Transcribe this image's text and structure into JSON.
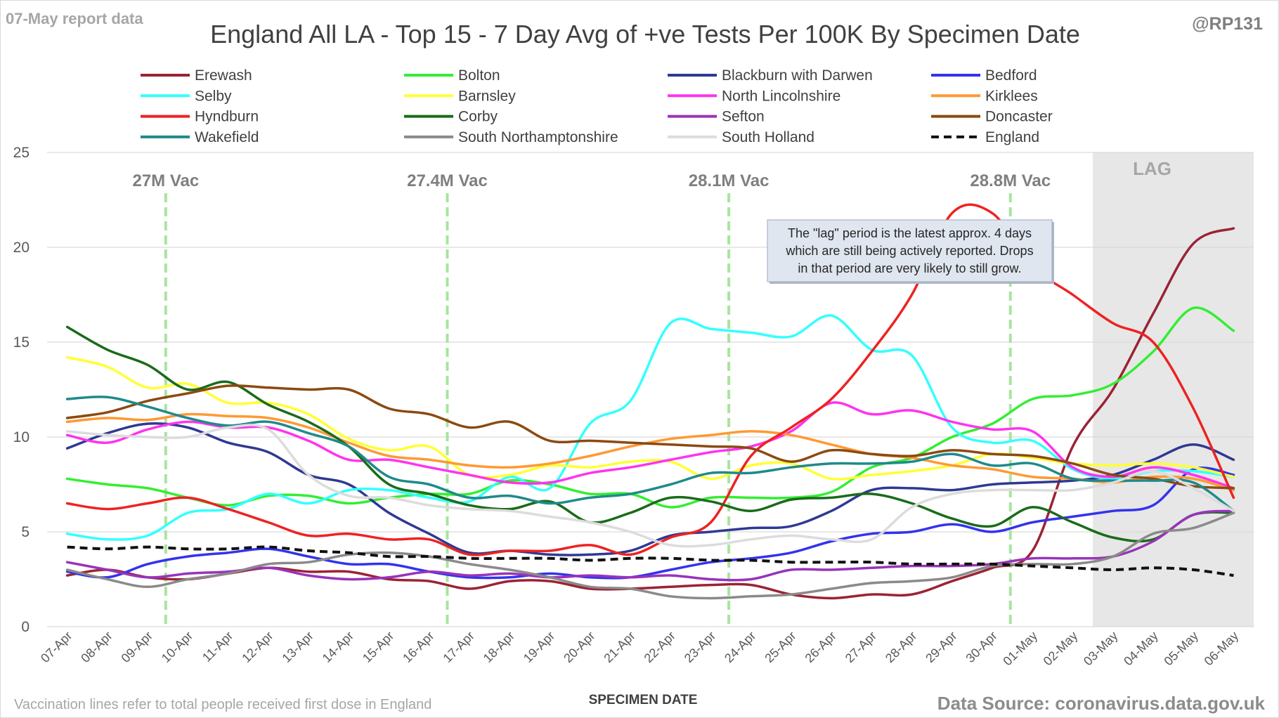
{
  "header": {
    "report_label": "07-May report data",
    "title": "England All LA - Top 15 - 7 Day Avg of +ve Tests Per 100K By Specimen Date",
    "handle": "@RP131"
  },
  "footer": {
    "note": "Vaccination lines refer to total people received first dose in England",
    "xlabel": "SPECIMEN DATE",
    "source": "Data Source: coronavirus.data.gov.uk"
  },
  "annotation": {
    "lag_label": "LAG",
    "callout_lines": [
      "The \"lag\" period is the latest approx. 4 days",
      "which are still being actively reported.  Drops",
      "in that period are very likely to still grow."
    ]
  },
  "colors": {
    "vac_line": "#a9e4a0",
    "lag_shade": "#e7e7e7",
    "grid": "#d9d9d9",
    "callout_bg": "#dfe6f0",
    "callout_border": "#9aa9bd"
  },
  "chart_data": {
    "type": "line",
    "ylim": [
      0,
      25
    ],
    "yticks": [
      "0",
      "5",
      "10",
      "15",
      "20",
      "25"
    ],
    "yticks_values": [
      0,
      5,
      10,
      15,
      20,
      25
    ],
    "x": [
      "07-Apr",
      "08-Apr",
      "09-Apr",
      "10-Apr",
      "11-Apr",
      "12-Apr",
      "13-Apr",
      "14-Apr",
      "15-Apr",
      "16-Apr",
      "17-Apr",
      "18-Apr",
      "19-Apr",
      "20-Apr",
      "21-Apr",
      "22-Apr",
      "23-Apr",
      "24-Apr",
      "25-Apr",
      "26-Apr",
      "27-Apr",
      "28-Apr",
      "29-Apr",
      "30-Apr",
      "01-May",
      "02-May",
      "03-May",
      "04-May",
      "05-May",
      "06-May"
    ],
    "lag_start": "03-May",
    "vaccination_lines": [
      {
        "date": "09-Apr",
        "label": "27M Vac"
      },
      {
        "date": "16-Apr",
        "label": "27.4M Vac"
      },
      {
        "date": "23-Apr",
        "label": "28.1M Vac"
      },
      {
        "date": "30-Apr",
        "label": "28.8M Vac"
      }
    ],
    "series": [
      {
        "name": "Erewash",
        "color": "#9b2335",
        "dash": false,
        "values": [
          2.7,
          3.0,
          2.6,
          2.5,
          2.8,
          3.1,
          2.9,
          2.9,
          2.5,
          2.4,
          2.0,
          2.4,
          2.4,
          2.0,
          2.0,
          2.1,
          2.2,
          2.2,
          1.7,
          1.5,
          1.7,
          1.7,
          2.4,
          3.1,
          4.0,
          9.5,
          12.5,
          16.5,
          20.2,
          21.0
        ]
      },
      {
        "name": "Bolton",
        "color": "#33ee33",
        "dash": false,
        "values": [
          7.8,
          7.5,
          7.3,
          6.8,
          6.4,
          6.9,
          6.9,
          6.5,
          6.8,
          7.0,
          7.0,
          7.7,
          7.5,
          7.0,
          7.0,
          6.3,
          6.8,
          6.8,
          6.8,
          7.1,
          8.4,
          8.9,
          10.0,
          10.7,
          12.0,
          12.2,
          12.8,
          14.5,
          16.8,
          15.6
        ]
      },
      {
        "name": "Blackburn with Darwen",
        "color": "#2f3992",
        "dash": false,
        "values": [
          9.4,
          10.2,
          10.7,
          10.5,
          9.7,
          9.2,
          8.0,
          7.5,
          6.0,
          4.9,
          3.9,
          4.0,
          3.8,
          3.8,
          4.0,
          4.8,
          5.0,
          5.2,
          5.3,
          6.1,
          7.2,
          7.3,
          7.2,
          7.5,
          7.6,
          7.7,
          8.0,
          8.8,
          9.6,
          8.8
        ]
      },
      {
        "name": "Bedford",
        "color": "#3333ee",
        "dash": false,
        "values": [
          2.9,
          2.6,
          3.3,
          3.7,
          3.9,
          4.1,
          3.7,
          3.3,
          3.3,
          2.9,
          2.6,
          2.6,
          2.8,
          2.6,
          2.6,
          3.0,
          3.4,
          3.6,
          3.9,
          4.5,
          4.9,
          5.0,
          5.4,
          5.0,
          5.5,
          5.8,
          6.1,
          6.4,
          8.3,
          8.0
        ]
      },
      {
        "name": "Selby",
        "color": "#33ffff",
        "dash": false,
        "values": [
          4.9,
          4.6,
          4.8,
          6.0,
          6.2,
          7.0,
          6.5,
          7.2,
          7.2,
          6.8,
          6.6,
          7.9,
          7.3,
          10.7,
          11.9,
          16.0,
          15.7,
          15.5,
          15.3,
          16.4,
          14.6,
          14.3,
          10.5,
          9.7,
          9.8,
          8.3,
          7.8,
          8.2,
          8.2,
          7.9
        ]
      },
      {
        "name": "Barnsley",
        "color": "#ffff33",
        "dash": false,
        "values": [
          14.2,
          13.7,
          12.6,
          12.8,
          11.8,
          11.8,
          11.2,
          9.9,
          9.3,
          9.5,
          8.0,
          8.0,
          8.5,
          8.4,
          8.7,
          8.7,
          7.8,
          8.5,
          8.6,
          7.8,
          8.0,
          8.2,
          8.5,
          9.1,
          8.9,
          8.6,
          8.5,
          8.6,
          8.4,
          7.9
        ]
      },
      {
        "name": "North Lincolnshire",
        "color": "#ff33ee",
        "dash": false,
        "values": [
          10.1,
          9.7,
          10.4,
          10.8,
          10.5,
          10.5,
          9.8,
          8.8,
          8.8,
          8.4,
          8.0,
          7.6,
          7.6,
          8.1,
          8.4,
          8.8,
          9.2,
          9.5,
          10.3,
          11.8,
          11.2,
          11.4,
          10.8,
          10.4,
          10.3,
          8.4,
          7.9,
          8.4,
          8.0,
          7.3
        ]
      },
      {
        "name": "Kirklees",
        "color": "#ff9933",
        "dash": false,
        "values": [
          10.8,
          11.0,
          10.9,
          11.2,
          11.1,
          11.0,
          10.5,
          9.7,
          9.0,
          8.8,
          8.5,
          8.4,
          8.6,
          9.0,
          9.5,
          9.9,
          10.1,
          10.3,
          10.1,
          9.6,
          9.1,
          8.9,
          8.5,
          8.3,
          7.9,
          7.8,
          7.6,
          7.9,
          7.8,
          7.2
        ]
      },
      {
        "name": "Hyndburn",
        "color": "#ee2222",
        "dash": false,
        "values": [
          6.5,
          6.2,
          6.5,
          6.8,
          6.2,
          5.5,
          4.8,
          4.9,
          4.6,
          4.6,
          3.8,
          4.0,
          4.0,
          4.3,
          3.8,
          4.7,
          5.5,
          9.0,
          10.5,
          12.0,
          14.5,
          17.5,
          21.8,
          21.8,
          19.0,
          17.5,
          16.0,
          15.0,
          11.5,
          6.8
        ]
      },
      {
        "name": "Corby",
        "color": "#1a6b1a",
        "dash": false,
        "values": [
          15.8,
          14.6,
          13.8,
          12.5,
          12.9,
          11.7,
          10.8,
          9.5,
          7.5,
          7.0,
          6.4,
          6.2,
          6.6,
          5.5,
          6.0,
          6.8,
          6.6,
          6.1,
          6.7,
          6.8,
          7.0,
          6.5,
          5.7,
          5.3,
          6.3,
          5.5,
          4.7,
          4.6,
          5.9,
          6.0
        ]
      },
      {
        "name": "Sefton",
        "color": "#9933bb",
        "dash": false,
        "values": [
          3.4,
          3.0,
          2.6,
          2.8,
          2.9,
          3.1,
          2.7,
          2.5,
          2.6,
          2.9,
          2.7,
          2.8,
          2.6,
          2.7,
          2.6,
          2.7,
          2.5,
          2.5,
          3.0,
          3.0,
          3.1,
          3.2,
          3.2,
          3.3,
          3.6,
          3.6,
          3.7,
          4.5,
          5.9,
          6.1
        ]
      },
      {
        "name": "Doncaster",
        "color": "#8b4a12",
        "dash": false,
        "values": [
          11.0,
          11.3,
          11.9,
          12.3,
          12.7,
          12.6,
          12.5,
          12.5,
          11.5,
          11.2,
          10.5,
          10.8,
          9.8,
          9.8,
          9.7,
          9.6,
          9.5,
          9.4,
          8.7,
          9.3,
          9.1,
          9.0,
          9.3,
          9.1,
          9.0,
          8.6,
          8.0,
          7.8,
          7.4,
          7.3
        ]
      },
      {
        "name": "Wakefield",
        "color": "#1f8a8a",
        "dash": false,
        "values": [
          12.0,
          12.1,
          11.6,
          11.0,
          10.6,
          10.8,
          10.2,
          9.5,
          7.9,
          7.5,
          6.8,
          6.9,
          6.5,
          6.8,
          7.0,
          7.5,
          8.1,
          8.1,
          8.4,
          8.6,
          8.6,
          8.7,
          9.1,
          8.5,
          8.6,
          7.8,
          7.7,
          7.7,
          7.6,
          6.1
        ]
      },
      {
        "name": "South Northamptonshire",
        "color": "#8a8a8a",
        "dash": false,
        "values": [
          3.0,
          2.5,
          2.1,
          2.5,
          2.8,
          3.3,
          3.4,
          3.8,
          3.9,
          3.7,
          3.3,
          3.0,
          2.6,
          2.1,
          2.0,
          1.6,
          1.5,
          1.6,
          1.7,
          2.0,
          2.3,
          2.4,
          2.6,
          3.2,
          3.3,
          3.3,
          3.7,
          4.9,
          5.2,
          6.0
        ]
      },
      {
        "name": "South Holland",
        "color": "#dcdcdc",
        "dash": false,
        "values": [
          10.3,
          10.1,
          10.0,
          10.0,
          10.5,
          10.4,
          8.0,
          6.9,
          6.8,
          6.4,
          6.2,
          6.1,
          5.8,
          5.5,
          5.0,
          4.3,
          4.3,
          4.6,
          4.8,
          4.6,
          4.6,
          6.3,
          7.0,
          7.2,
          7.2,
          7.2,
          7.6,
          8.2,
          7.3,
          6.1
        ]
      },
      {
        "name": "England",
        "color": "#111111",
        "dash": true,
        "values": [
          4.2,
          4.1,
          4.2,
          4.1,
          4.1,
          4.2,
          4.0,
          3.9,
          3.7,
          3.7,
          3.6,
          3.6,
          3.6,
          3.5,
          3.6,
          3.6,
          3.5,
          3.5,
          3.4,
          3.4,
          3.4,
          3.3,
          3.3,
          3.3,
          3.2,
          3.1,
          3.0,
          3.1,
          3.0,
          2.7
        ]
      }
    ]
  }
}
